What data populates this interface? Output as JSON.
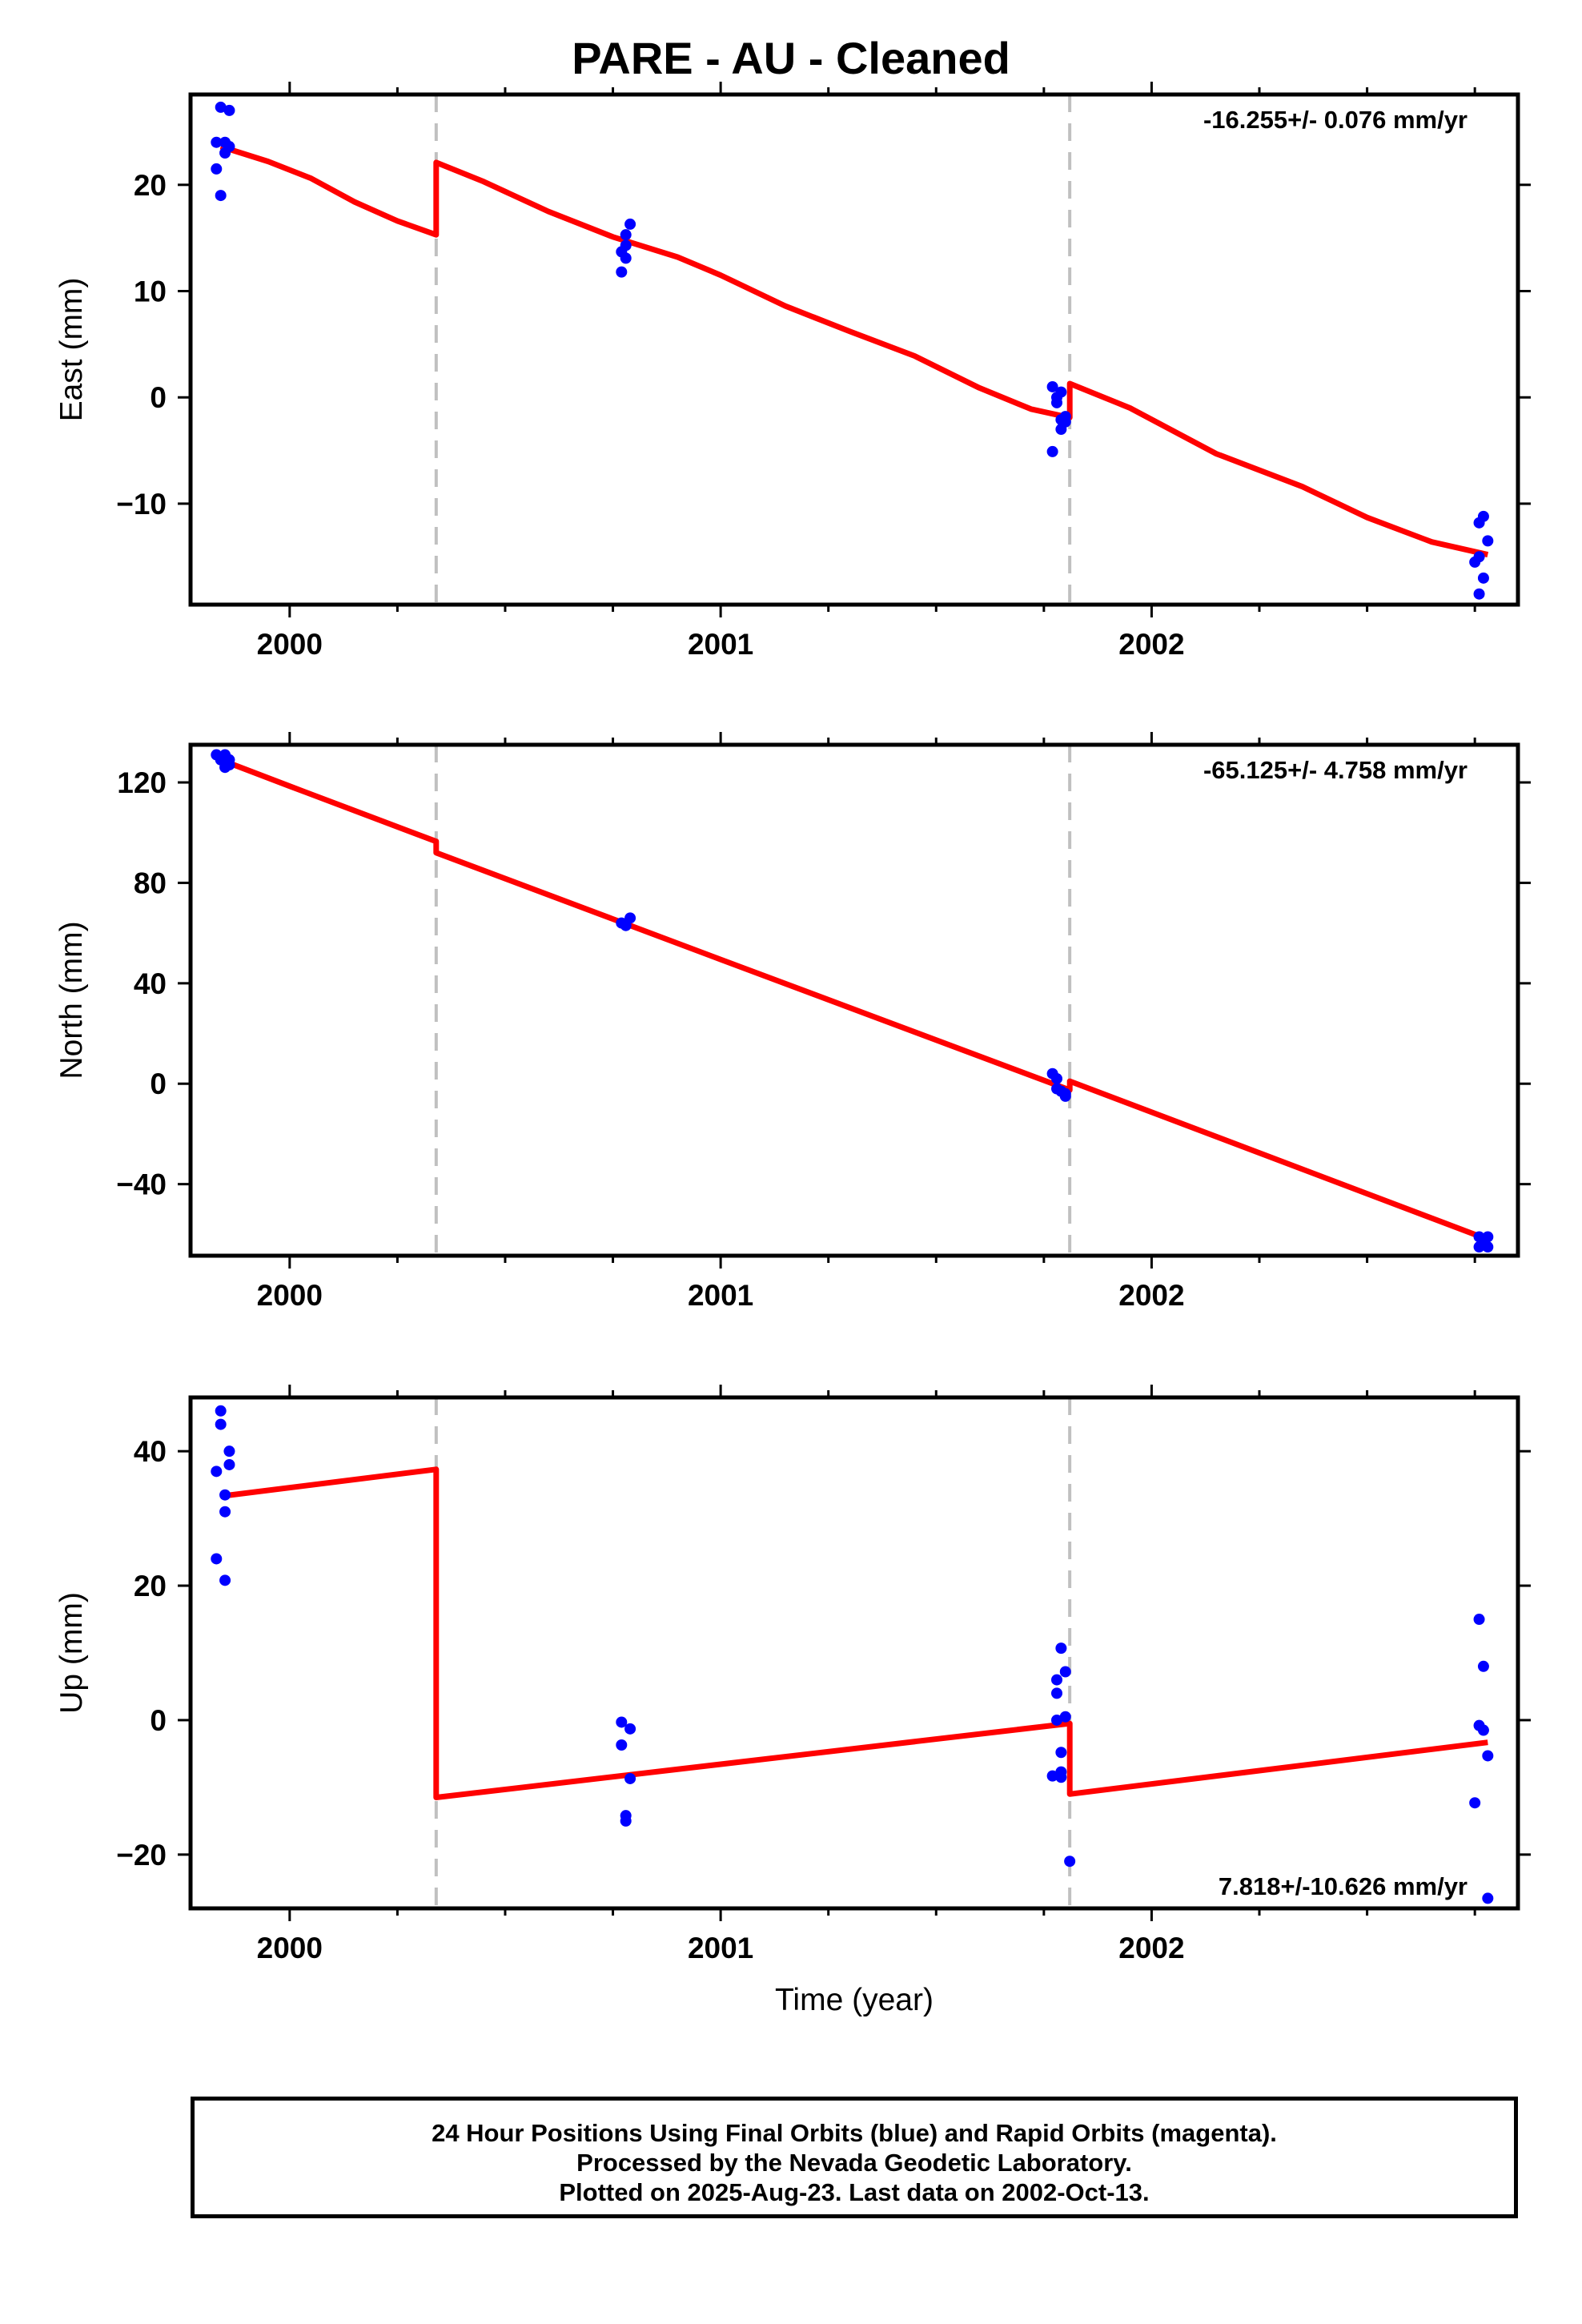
{
  "title": "PARE  - AU - Cleaned",
  "xlabel": "Time (year)",
  "footer": {
    "line1": "24 Hour Positions Using Final Orbits (blue) and Rapid Orbits (magenta).",
    "line2": "Processed by the Nevada Geodetic Laboratory.",
    "line3": "Plotted on 2025-Aug-23. Last data on 2002-Oct-13."
  },
  "colors": {
    "data_points": "#0000ff",
    "model_line": "#ff0000",
    "break_lines": "#c0c0c0"
  },
  "chart_data": [
    {
      "type": "scatter",
      "ylabel": "East (mm)",
      "rate_label": "-16.255+/- 0.076 mm/yr",
      "rate_position": "top-right",
      "xlim": [
        1999.77,
        2002.85
      ],
      "ylim": [
        -19.5,
        28.5
      ],
      "xticks": [
        2000,
        2001,
        2002
      ],
      "yticks": [
        -10,
        0,
        10,
        20
      ],
      "breaks": [
        2000.34,
        2001.81
      ],
      "points": [
        [
          1999.83,
          24
        ],
        [
          1999.83,
          21.5
        ],
        [
          1999.84,
          19
        ],
        [
          1999.84,
          27.3
        ],
        [
          1999.85,
          24
        ],
        [
          1999.85,
          23
        ],
        [
          1999.86,
          27
        ],
        [
          1999.86,
          23.6
        ],
        [
          2000.77,
          11.8
        ],
        [
          2000.77,
          13.7
        ],
        [
          2000.78,
          15.3
        ],
        [
          2000.78,
          14.3
        ],
        [
          2000.78,
          13.1
        ],
        [
          2000.79,
          16.3
        ],
        [
          2001.77,
          -5.1
        ],
        [
          2001.77,
          1
        ],
        [
          2001.78,
          0
        ],
        [
          2001.78,
          -0.5
        ],
        [
          2001.79,
          -2.1
        ],
        [
          2001.79,
          -3
        ],
        [
          2001.79,
          0.5
        ],
        [
          2001.8,
          -1.8
        ],
        [
          2001.8,
          -2.3
        ],
        [
          2002.75,
          -15.5
        ],
        [
          2002.76,
          -15
        ],
        [
          2002.76,
          -11.8
        ],
        [
          2002.76,
          -18.5
        ],
        [
          2002.77,
          -17
        ],
        [
          2002.77,
          -11.2
        ],
        [
          2002.78,
          -13.5
        ]
      ],
      "model": [
        [
          1999.84,
          23.6
        ],
        [
          1999.95,
          22.2
        ],
        [
          2000.05,
          20.6
        ],
        [
          2000.15,
          18.4
        ],
        [
          2000.25,
          16.6
        ],
        [
          2000.34,
          15.3
        ],
        [
          2000.34,
          22.1
        ],
        [
          2000.45,
          20.3
        ],
        [
          2000.6,
          17.5
        ],
        [
          2000.75,
          15.1
        ],
        [
          2000.9,
          13.2
        ],
        [
          2001.0,
          11.5
        ],
        [
          2001.15,
          8.6
        ],
        [
          2001.3,
          6.2
        ],
        [
          2001.45,
          3.9
        ],
        [
          2001.6,
          0.9
        ],
        [
          2001.72,
          -1.1
        ],
        [
          2001.81,
          -1.9
        ],
        [
          2001.81,
          1.3
        ],
        [
          2001.95,
          -1.0
        ],
        [
          2002.15,
          -5.3
        ],
        [
          2002.35,
          -8.4
        ],
        [
          2002.5,
          -11.3
        ],
        [
          2002.65,
          -13.6
        ],
        [
          2002.78,
          -14.8
        ]
      ]
    },
    {
      "type": "scatter",
      "ylabel": "North (mm)",
      "rate_label": "-65.125+/- 4.758 mm/yr",
      "rate_position": "top-right",
      "xlim": [
        1999.77,
        2002.85
      ],
      "ylim": [
        -68.5,
        135
      ],
      "xticks": [
        2000,
        2001,
        2002
      ],
      "yticks": [
        -40,
        0,
        40,
        80,
        120
      ],
      "breaks": [
        2000.34,
        2001.81
      ],
      "points": [
        [
          1999.83,
          131
        ],
        [
          1999.84,
          129
        ],
        [
          1999.85,
          126
        ],
        [
          1999.85,
          131
        ],
        [
          1999.86,
          129
        ],
        [
          1999.86,
          127
        ],
        [
          2000.77,
          64
        ],
        [
          2000.78,
          63
        ],
        [
          2000.79,
          66
        ],
        [
          2001.77,
          4
        ],
        [
          2001.78,
          -2
        ],
        [
          2001.78,
          2
        ],
        [
          2001.79,
          -3
        ],
        [
          2001.8,
          -5
        ],
        [
          2001.8,
          -4
        ],
        [
          2002.76,
          -61
        ],
        [
          2002.76,
          -65
        ],
        [
          2002.77,
          -64
        ],
        [
          2002.78,
          -61
        ],
        [
          2002.78,
          -65
        ]
      ],
      "model": [
        [
          1999.84,
          129
        ],
        [
          2000.0,
          118.5
        ],
        [
          2000.34,
          96.5
        ],
        [
          2000.34,
          92
        ],
        [
          2001.0,
          49.5
        ],
        [
          2001.81,
          -2.5
        ],
        [
          2001.81,
          1
        ],
        [
          2002.78,
          -62
        ]
      ]
    },
    {
      "type": "scatter",
      "ylabel": "Up (mm)",
      "rate_label": "7.818+/-10.626 mm/yr",
      "rate_position": "bottom-right",
      "xlim": [
        1999.77,
        2002.85
      ],
      "ylim": [
        -28,
        48
      ],
      "xticks": [
        2000,
        2001,
        2002
      ],
      "yticks": [
        -20,
        0,
        20,
        40
      ],
      "breaks": [
        2000.34,
        2001.81
      ],
      "points": [
        [
          1999.83,
          24
        ],
        [
          1999.83,
          37
        ],
        [
          1999.84,
          46
        ],
        [
          1999.84,
          44
        ],
        [
          1999.85,
          33.5
        ],
        [
          1999.85,
          31
        ],
        [
          1999.85,
          20.8
        ],
        [
          1999.86,
          40
        ],
        [
          1999.86,
          38
        ],
        [
          2000.77,
          -0.3
        ],
        [
          2000.77,
          -3.7
        ],
        [
          2000.78,
          -14.2
        ],
        [
          2000.78,
          -15
        ],
        [
          2000.79,
          -1.3
        ],
        [
          2000.79,
          -8.7
        ],
        [
          2001.77,
          -8.3
        ],
        [
          2001.78,
          6
        ],
        [
          2001.78,
          4
        ],
        [
          2001.78,
          0
        ],
        [
          2001.79,
          -7.7
        ],
        [
          2001.79,
          -8.5
        ],
        [
          2001.79,
          10.7
        ],
        [
          2001.79,
          -4.8
        ],
        [
          2001.8,
          0.5
        ],
        [
          2001.8,
          7.2
        ],
        [
          2001.81,
          -21
        ],
        [
          2002.75,
          -12.3
        ],
        [
          2002.76,
          15
        ],
        [
          2002.76,
          -0.8
        ],
        [
          2002.77,
          -1.5
        ],
        [
          2002.77,
          8
        ],
        [
          2002.78,
          -5.3
        ],
        [
          2002.78,
          -26.5
        ]
      ],
      "model": [
        [
          1999.84,
          33.3
        ],
        [
          2000.34,
          37.3
        ],
        [
          2000.34,
          -11.5
        ],
        [
          2001.81,
          -0.5
        ],
        [
          2001.81,
          -11
        ],
        [
          2002.78,
          -3.3
        ]
      ]
    }
  ]
}
